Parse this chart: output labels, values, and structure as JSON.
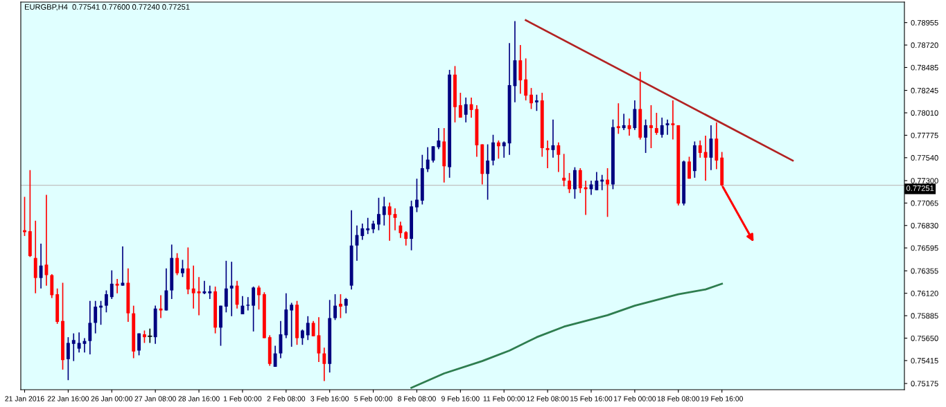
{
  "chart_data": {
    "type": "candlestick",
    "title": "EURGBP,H4  0.77541 0.77600 0.77240 0.77251",
    "categories": [
      "21 Jan 2016",
      null,
      null,
      null,
      null,
      null,
      null,
      null,
      "22 Jan 16:00",
      null,
      null,
      null,
      null,
      null,
      null,
      null,
      "26 Jan 00:00",
      null,
      null,
      null,
      null,
      null,
      null,
      null,
      "27 Jan 08:00",
      null,
      null,
      null,
      null,
      null,
      null,
      null,
      "28 Jan 16:00",
      null,
      null,
      null,
      null,
      null,
      null,
      null,
      "1 Feb 00:00",
      null,
      null,
      null,
      null,
      null,
      null,
      null,
      "2 Feb 08:00",
      null,
      null,
      null,
      null,
      null,
      null,
      null,
      "3 Feb 16:00",
      null,
      null,
      null,
      null,
      null,
      null,
      null,
      "5 Feb 00:00",
      null,
      null,
      null,
      null,
      null,
      null,
      null,
      "8 Feb 08:00",
      null,
      null,
      null,
      null,
      null,
      null,
      null,
      "9 Feb 16:00",
      null,
      null,
      null,
      null,
      null,
      null,
      null,
      "11 Feb 00:00",
      null,
      null,
      null,
      null,
      null,
      null,
      null,
      "12 Feb 08:00",
      null,
      null,
      null,
      null,
      null,
      null,
      null,
      "15 Feb 16:00",
      null,
      null,
      null,
      null,
      null,
      null,
      null,
      "17 Feb 00:00",
      null,
      null,
      null,
      null,
      null,
      null,
      null,
      "18 Feb 08:00",
      null,
      null,
      null,
      null,
      null,
      null,
      null,
      "19 Feb 16:00",
      null,
      null,
      null,
      null,
      null,
      null,
      null,
      null,
      null,
      null,
      null,
      null,
      null,
      null,
      null,
      null,
      null,
      null,
      null,
      null,
      null,
      null,
      null,
      null,
      null,
      null,
      null,
      null,
      null,
      null,
      null,
      null,
      null
    ],
    "ohlc": [
      [
        0.7678,
        0.7713,
        0.7672,
        0.7676
      ],
      [
        0.7677,
        0.7741,
        0.765,
        0.7651
      ],
      [
        0.7649,
        0.7688,
        0.7612,
        0.7628
      ],
      [
        0.7628,
        0.7664,
        0.7617,
        0.7641
      ],
      [
        0.7642,
        0.7715,
        0.762,
        0.7631
      ],
      [
        0.7631,
        0.7632,
        0.7607,
        0.761
      ],
      [
        0.7611,
        0.7617,
        0.758,
        0.7582
      ],
      [
        0.7583,
        0.7623,
        0.7532,
        0.7542
      ],
      [
        0.7543,
        0.7566,
        0.7521,
        0.756
      ],
      [
        0.7559,
        0.757,
        0.7541,
        0.7563
      ],
      [
        0.7554,
        0.7571,
        0.755,
        0.756
      ],
      [
        0.7559,
        0.7565,
        0.755,
        0.7562
      ],
      [
        0.7562,
        0.7604,
        0.7548,
        0.7581
      ],
      [
        0.7581,
        0.7604,
        0.757,
        0.7598
      ],
      [
        0.7597,
        0.7604,
        0.7579,
        0.7599
      ],
      [
        0.7599,
        0.7615,
        0.7592,
        0.7611
      ],
      [
        0.7608,
        0.7636,
        0.7606,
        0.7622
      ],
      [
        0.7622,
        0.7627,
        0.7612,
        0.762
      ],
      [
        0.762,
        0.7661,
        0.762,
        0.7623
      ],
      [
        0.7623,
        0.7638,
        0.7582,
        0.7591
      ],
      [
        0.7591,
        0.7599,
        0.7544,
        0.7551
      ],
      [
        0.7552,
        0.757,
        0.7547,
        0.757
      ],
      [
        0.7569,
        0.7573,
        0.756,
        0.7566
      ],
      [
        0.7567,
        0.7575,
        0.756,
        0.7567
      ],
      [
        0.7566,
        0.7599,
        0.7559,
        0.7596
      ],
      [
        0.7596,
        0.761,
        0.7586,
        0.7594
      ],
      [
        0.7594,
        0.7638,
        0.7594,
        0.7615
      ],
      [
        0.7615,
        0.7663,
        0.7606,
        0.7649
      ],
      [
        0.7649,
        0.7654,
        0.7631,
        0.7633
      ],
      [
        0.7633,
        0.7647,
        0.7629,
        0.7638
      ],
      [
        0.7638,
        0.766,
        0.7611,
        0.7616
      ],
      [
        0.7617,
        0.7641,
        0.7596,
        0.7612
      ],
      [
        0.7614,
        0.7629,
        0.7589,
        0.7612
      ],
      [
        0.7612,
        0.7625,
        0.7611,
        0.7614
      ],
      [
        0.7612,
        0.762,
        0.7606,
        0.7614
      ],
      [
        0.7614,
        0.7619,
        0.757,
        0.7576
      ],
      [
        0.7576,
        0.7599,
        0.7557,
        0.7599
      ],
      [
        0.7598,
        0.7646,
        0.7592,
        0.7617
      ],
      [
        0.7617,
        0.7645,
        0.7588,
        0.762
      ],
      [
        0.762,
        0.7625,
        0.7596,
        0.76
      ],
      [
        0.759,
        0.7609,
        0.759,
        0.7599
      ],
      [
        0.7599,
        0.7608,
        0.7594,
        0.76
      ],
      [
        0.7599,
        0.7619,
        0.7572,
        0.7618
      ],
      [
        0.7618,
        0.762,
        0.7595,
        0.761
      ],
      [
        0.7611,
        0.7613,
        0.7565,
        0.7565
      ],
      [
        0.7566,
        0.7568,
        0.7536,
        0.7538
      ],
      [
        0.7535,
        0.7557,
        0.7535,
        0.7549
      ],
      [
        0.7549,
        0.7583,
        0.7544,
        0.7569
      ],
      [
        0.7568,
        0.7612,
        0.7565,
        0.7595
      ],
      [
        0.7594,
        0.7602,
        0.7556,
        0.76
      ],
      [
        0.76,
        0.7604,
        0.7558,
        0.7565
      ],
      [
        0.7565,
        0.7574,
        0.7558,
        0.7573
      ],
      [
        0.7568,
        0.7588,
        0.7563,
        0.7581
      ],
      [
        0.7581,
        0.7583,
        0.7567,
        0.7567
      ],
      [
        0.7568,
        0.7587,
        0.754,
        0.7549
      ],
      [
        0.7549,
        0.7555,
        0.752,
        0.7538
      ],
      [
        0.7538,
        0.7605,
        0.7529,
        0.7586
      ],
      [
        0.7586,
        0.7611,
        0.7584,
        0.7599
      ],
      [
        0.7601,
        0.7611,
        0.7586,
        0.7598
      ],
      [
        0.7599,
        0.7607,
        0.7591,
        0.7606
      ],
      [
        0.762,
        0.7699,
        0.7616,
        0.7662
      ],
      [
        0.7662,
        0.7683,
        0.7646,
        0.7673
      ],
      [
        0.7672,
        0.7685,
        0.7668,
        0.768
      ],
      [
        0.7678,
        0.7691,
        0.7674,
        0.768
      ],
      [
        0.7679,
        0.7688,
        0.7675,
        0.7685
      ],
      [
        0.7684,
        0.7712,
        0.7678,
        0.7695
      ],
      [
        0.7694,
        0.7713,
        0.7683,
        0.7703
      ],
      [
        0.7703,
        0.7707,
        0.7667,
        0.7694
      ],
      [
        0.7695,
        0.7701,
        0.7678,
        0.7691
      ],
      [
        0.7683,
        0.7687,
        0.767,
        0.7675
      ],
      [
        0.7676,
        0.7677,
        0.7662,
        0.7669
      ],
      [
        0.7669,
        0.7709,
        0.7657,
        0.7703
      ],
      [
        0.7702,
        0.7732,
        0.7697,
        0.771
      ],
      [
        0.7709,
        0.7757,
        0.7705,
        0.7743
      ],
      [
        0.7742,
        0.7765,
        0.7739,
        0.7752
      ],
      [
        0.7751,
        0.7766,
        0.7749,
        0.7766
      ],
      [
        0.7765,
        0.7785,
        0.7763,
        0.7772
      ],
      [
        0.7771,
        0.7785,
        0.7728,
        0.7745
      ],
      [
        0.7744,
        0.7846,
        0.7733,
        0.7841
      ],
      [
        0.7841,
        0.785,
        0.7791,
        0.7807
      ],
      [
        0.7809,
        0.7822,
        0.7796,
        0.7796
      ],
      [
        0.7799,
        0.7817,
        0.7791,
        0.781
      ],
      [
        0.781,
        0.7817,
        0.7796,
        0.7804
      ],
      [
        0.7805,
        0.7809,
        0.7755,
        0.7767
      ],
      [
        0.7768,
        0.7768,
        0.7726,
        0.7737
      ],
      [
        0.7737,
        0.7768,
        0.771,
        0.7751
      ],
      [
        0.7751,
        0.7778,
        0.7746,
        0.777
      ],
      [
        0.777,
        0.7772,
        0.7753,
        0.7766
      ],
      [
        0.7766,
        0.7771,
        0.7754,
        0.777
      ],
      [
        0.7769,
        0.7874,
        0.7757,
        0.783
      ],
      [
        0.7829,
        0.7897,
        0.7812,
        0.7856
      ],
      [
        0.7856,
        0.7872,
        0.7821,
        0.7835
      ],
      [
        0.7836,
        0.7858,
        0.7814,
        0.7819
      ],
      [
        0.782,
        0.7827,
        0.7805,
        0.7811
      ],
      [
        0.7812,
        0.782,
        0.7803,
        0.7814
      ],
      [
        0.7814,
        0.7822,
        0.7755,
        0.7764
      ],
      [
        0.7764,
        0.7772,
        0.7743,
        0.7762
      ],
      [
        0.7762,
        0.7794,
        0.7754,
        0.7767
      ],
      [
        0.7767,
        0.777,
        0.7739,
        0.7757
      ],
      [
        0.7733,
        0.7758,
        0.7724,
        0.773
      ],
      [
        0.773,
        0.7738,
        0.7717,
        0.7721
      ],
      [
        0.7721,
        0.7744,
        0.7711,
        0.7741
      ],
      [
        0.7741,
        0.7743,
        0.7717,
        0.7722
      ],
      [
        0.7723,
        0.773,
        0.7694,
        0.7721
      ],
      [
        0.7721,
        0.773,
        0.7715,
        0.7726
      ],
      [
        0.772,
        0.7739,
        0.772,
        0.773
      ],
      [
        0.7729,
        0.7736,
        0.772,
        0.7731
      ],
      [
        0.7731,
        0.7743,
        0.7692,
        0.7726
      ],
      [
        0.7726,
        0.7794,
        0.7721,
        0.7786
      ],
      [
        0.7787,
        0.7811,
        0.7779,
        0.7785
      ],
      [
        0.7785,
        0.78,
        0.7783,
        0.7788
      ],
      [
        0.7788,
        0.7795,
        0.7777,
        0.7784
      ],
      [
        0.7785,
        0.7814,
        0.7783,
        0.7805
      ],
      [
        0.7805,
        0.7844,
        0.7773,
        0.7775
      ],
      [
        0.7775,
        0.7794,
        0.7759,
        0.7788
      ],
      [
        0.7788,
        0.7809,
        0.7764,
        0.7785
      ],
      [
        0.7785,
        0.7801,
        0.7778,
        0.778
      ],
      [
        0.7778,
        0.7796,
        0.7775,
        0.7788
      ],
      [
        0.7788,
        0.7794,
        0.7778,
        0.779
      ],
      [
        0.779,
        0.7814,
        0.7773,
        0.7788
      ],
      [
        0.7788,
        0.7788,
        0.7704,
        0.7706
      ],
      [
        0.7706,
        0.7751,
        0.7704,
        0.775
      ],
      [
        0.775,
        0.7755,
        0.7732,
        0.7732
      ],
      [
        0.774,
        0.7771,
        0.7733,
        0.7767
      ],
      [
        0.7767,
        0.7772,
        0.7754,
        0.7759
      ],
      [
        0.776,
        0.7777,
        0.773,
        0.7754
      ],
      [
        0.7754,
        0.7788,
        0.7741,
        0.7774
      ],
      [
        0.7774,
        0.7791,
        0.7742,
        0.7751
      ],
      [
        0.77541,
        0.776,
        0.7724,
        0.77251
      ],
      null,
      null,
      null,
      null,
      null,
      null,
      null,
      null,
      null,
      null,
      null,
      null,
      null,
      null,
      null,
      null,
      null,
      null,
      null,
      null,
      null,
      null,
      null,
      null,
      null,
      null,
      null,
      null,
      null,
      null,
      null,
      null,
      null
    ],
    "colors": [
      "#ff0000",
      "#ff0000",
      "#ff0000",
      "#000080",
      "#ff0000",
      "#ff0000",
      "#ff0000",
      "#ff0000",
      "#000080",
      "#000080",
      "#000080",
      "#000080",
      "#000080",
      "#000080",
      "#000080",
      "#000080",
      "#000080",
      "#ff0000",
      "#000080",
      "#ff0000",
      "#ff0000",
      "#000080",
      "#ff0000",
      "#000000",
      "#000080",
      "#ff0000",
      "#000080",
      "#000080",
      "#ff0000",
      "#000080",
      "#ff0000",
      "#ff0000",
      "#ff0000",
      "#000080",
      "#000080",
      "#ff0000",
      "#000080",
      "#000080",
      "#000080",
      "#ff0000",
      "#000080",
      "#000080",
      "#000080",
      "#ff0000",
      "#ff0000",
      "#ff0000",
      "#000080",
      "#000080",
      "#000080",
      "#000080",
      "#ff0000",
      "#000080",
      "#000080",
      "#ff0000",
      "#ff0000",
      "#ff0000",
      "#000080",
      "#000080",
      "#ff0000",
      "#000080",
      "#000080",
      "#000080",
      "#000080",
      "#000080",
      "#000080",
      "#000080",
      "#000080",
      "#ff0000",
      "#ff0000",
      "#ff0000",
      "#ff0000",
      "#000080",
      "#000080",
      "#000080",
      "#000080",
      "#000080",
      "#000080",
      "#ff0000",
      "#000080",
      "#ff0000",
      "#ff0000",
      "#000080",
      "#ff0000",
      "#ff0000",
      "#ff0000",
      "#000080",
      "#000080",
      "#ff0000",
      "#000080",
      "#000080",
      "#000080",
      "#ff0000",
      "#ff0000",
      "#ff0000",
      "#000080",
      "#ff0000",
      "#ff0000",
      "#000080",
      "#ff0000",
      "#ff0000",
      "#ff0000",
      "#000080",
      "#ff0000",
      "#ff0000",
      "#000080",
      "#000080",
      "#000080",
      "#ff0000",
      "#000080",
      "#ff0000",
      "#000080",
      "#ff0000",
      "#000080",
      "#ff0000",
      "#000080",
      "#ff0000",
      "#ff0000",
      "#000080",
      "#000080",
      "#ff0000",
      "#ff0000",
      "#000080",
      "#ff0000",
      "#000080",
      "#ff0000",
      "#ff0000",
      "#000080",
      "#ff0000",
      "#ff0000",
      null,
      null,
      null,
      null,
      null,
      null,
      null,
      null,
      null,
      null,
      null,
      null,
      null,
      null,
      null,
      null,
      null,
      null,
      null,
      null,
      null,
      null,
      null,
      null,
      null,
      null,
      null,
      null,
      null,
      null,
      null,
      null,
      null
    ],
    "series": [
      {
        "type": "line",
        "color": "#2e7d4f",
        "values": [
          null,
          null,
          null,
          null,
          null,
          null,
          null,
          null,
          null,
          null,
          null,
          null,
          null,
          null,
          null,
          null,
          null,
          null,
          null,
          null,
          null,
          null,
          null,
          null,
          null,
          null,
          null,
          null,
          null,
          null,
          null,
          null,
          null,
          null,
          null,
          null,
          null,
          null,
          null,
          null,
          null,
          null,
          null,
          null,
          null,
          null,
          null,
          null,
          null,
          null,
          null,
          null,
          null,
          null,
          null,
          null,
          null,
          null,
          null,
          null,
          null,
          null,
          null,
          null,
          null,
          null,
          null,
          null,
          null,
          null,
          null,
          0.7513,
          null,
          null,
          null,
          null,
          null,
          0.7528,
          null,
          null,
          null,
          null,
          null,
          null,
          0.7541,
          null,
          null,
          null,
          null,
          0.7552,
          null,
          null,
          null,
          null,
          0.7566,
          null,
          null,
          null,
          null,
          0.7577,
          null,
          null,
          null,
          null,
          null,
          null,
          null,
          0.7589,
          null,
          null,
          null,
          null,
          0.7599,
          null,
          null,
          null,
          null,
          null,
          null,
          null,
          0.7611,
          null,
          null,
          null,
          null,
          0.7616,
          null,
          null,
          0.7622,
          null,
          null,
          null,
          null,
          null,
          null,
          null,
          null,
          null,
          null,
          null,
          null,
          null,
          null,
          null,
          null,
          null,
          null,
          null,
          null,
          null,
          null,
          null,
          null,
          null,
          null,
          null,
          null,
          null,
          null,
          null,
          null,
          null
        ]
      },
      {
        "type": "line",
        "color": "#b22222",
        "values": [
          null,
          null,
          null,
          null,
          null,
          null,
          null,
          null,
          null,
          null,
          null,
          null,
          null,
          null,
          null,
          null,
          null,
          null,
          null,
          null,
          null,
          null,
          null,
          null,
          null,
          null,
          null,
          null,
          null,
          null,
          null,
          null,
          null,
          null,
          null,
          null,
          null,
          null,
          null,
          null,
          null,
          null,
          null,
          null,
          null,
          null,
          null,
          null,
          null,
          null,
          null,
          null,
          null,
          null,
          null,
          null,
          null,
          null,
          null,
          null,
          null,
          null,
          null,
          null,
          null,
          null,
          null,
          null,
          null,
          null,
          null,
          null,
          null,
          null,
          null,
          null,
          null,
          null,
          null,
          null,
          null,
          null,
          null,
          null,
          null,
          null,
          null,
          null,
          null,
          null,
          null,
          null,
          0.7898,
          null,
          null,
          null,
          null,
          null,
          null,
          null,
          null,
          null,
          null,
          null,
          null,
          null,
          null,
          null,
          null,
          null,
          null,
          null,
          null,
          null,
          null,
          null,
          null,
          null,
          null,
          null,
          null,
          null,
          null,
          null,
          null,
          null,
          null,
          null,
          null,
          null,
          null,
          null,
          null,
          null,
          null,
          null,
          null,
          null,
          null,
          null,
          null,
          0.7751,
          null,
          null,
          null,
          null,
          null,
          null,
          null,
          null,
          null,
          null,
          null,
          null,
          null,
          null,
          null,
          null,
          null,
          null,
          null,
          null
        ]
      }
    ],
    "ylim": [
      0.7511,
      0.7917
    ],
    "yticks": [
      0.78955,
      {
        "value": 0.7872,
        "label": "0.78720"
      },
      0.78485,
      0.78245,
      {
        "value": 0.7801,
        "label": "0.78010"
      },
      0.77775,
      {
        "value": 0.7754,
        "label": "0.77540"
      },
      {
        "value": 0.773,
        "label": "0.77300"
      },
      0.77065,
      {
        "value": 0.7683,
        "label": "0.76830"
      },
      0.76595,
      0.76355,
      {
        "value": 0.7612,
        "label": "0.76120"
      },
      0.75885,
      {
        "value": 0.7565,
        "label": "0.75650"
      },
      0.75415,
      0.75175
    ],
    "ref_lines": [
      {
        "axis": "y",
        "value": 0.77251,
        "label": "0.77251",
        "color": "#c0c0c0"
      }
    ]
  }
}
